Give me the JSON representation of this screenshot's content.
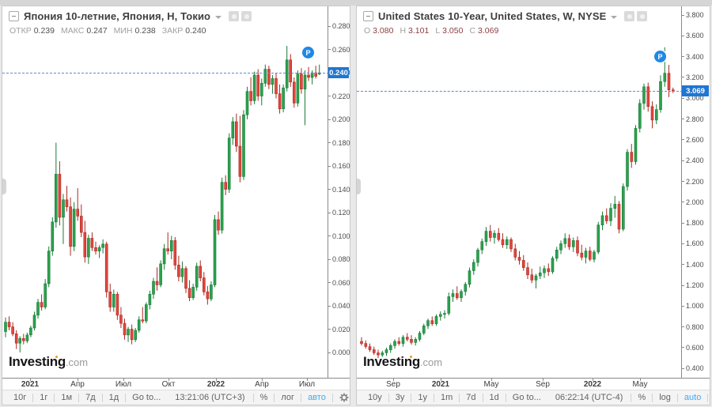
{
  "branding": {
    "logo_bold": "Investing",
    "logo_suffix": ".com",
    "logo_dot_color": "#f7941d"
  },
  "colors": {
    "candle_up_fill": "#2ca24e",
    "candle_up_stroke": "#1a7a38",
    "candle_down_fill": "#e2463d",
    "candle_down_stroke": "#ab2a22",
    "price_badge_bg": "#1f76d2",
    "last_price_line": "#5a8bd6",
    "marker_bg": "#1e88e5",
    "auto_label": "#3fa9f5"
  },
  "chart_data": [
    {
      "type": "candlestick",
      "symbol_title": "Япония 10-летние, Япония, Н, Токио",
      "ohlc": [
        {
          "label": "ОТКР",
          "value": "0.239"
        },
        {
          "label": "МАКС",
          "value": "0.247"
        },
        {
          "label": "МИН",
          "value": "0.238"
        },
        {
          "label": "ЗАКР",
          "value": "0.240"
        }
      ],
      "last_price_label": "0.240",
      "last_price_value": 0.24,
      "marker": {
        "label": "P",
        "x": 379,
        "y": 51
      },
      "y_axis": {
        "v_top": 0.297,
        "v_bottom": -0.0217,
        "decimals": 3,
        "ticks": [
          0.28,
          0.26,
          0.24,
          0.22,
          0.2,
          0.18,
          0.16,
          0.14,
          0.12,
          0.1,
          0.08,
          0.06,
          0.04,
          0.02,
          0.0
        ]
      },
      "x_ticks": [
        {
          "label": "2021",
          "x": 35,
          "bold": true
        },
        {
          "label": "Апр",
          "x": 95,
          "bold": false
        },
        {
          "label": "Июл",
          "x": 153,
          "bold": false
        },
        {
          "label": "Окт",
          "x": 210,
          "bold": false
        },
        {
          "label": "2022",
          "x": 270,
          "bold": true
        },
        {
          "label": "Апр",
          "x": 328,
          "bold": false
        },
        {
          "label": "Июл",
          "x": 385,
          "bold": false
        }
      ],
      "plot": {
        "x_start": 4,
        "x_step": 4.56,
        "candle_width": 3
      },
      "candles": [
        [
          0.018,
          0.03,
          0.013,
          0.026
        ],
        [
          0.026,
          0.031,
          0.019,
          0.022
        ],
        [
          0.022,
          0.026,
          0.014,
          0.016
        ],
        [
          0.016,
          0.019,
          0.003,
          0.008
        ],
        [
          0.008,
          0.014,
          0.0,
          0.012
        ],
        [
          0.012,
          0.016,
          0.007,
          0.01
        ],
        [
          0.01,
          0.017,
          0.008,
          0.015
        ],
        [
          0.015,
          0.023,
          0.013,
          0.021
        ],
        [
          0.021,
          0.035,
          0.019,
          0.032
        ],
        [
          0.032,
          0.046,
          0.029,
          0.043
        ],
        [
          0.043,
          0.05,
          0.036,
          0.039
        ],
        [
          0.039,
          0.063,
          0.037,
          0.059
        ],
        [
          0.059,
          0.091,
          0.056,
          0.087
        ],
        [
          0.087,
          0.116,
          0.083,
          0.112
        ],
        [
          0.112,
          0.18,
          0.107,
          0.153
        ],
        [
          0.153,
          0.164,
          0.109,
          0.116
        ],
        [
          0.116,
          0.136,
          0.093,
          0.131
        ],
        [
          0.131,
          0.143,
          0.121,
          0.125
        ],
        [
          0.125,
          0.133,
          0.083,
          0.091
        ],
        [
          0.091,
          0.129,
          0.087,
          0.123
        ],
        [
          0.123,
          0.141,
          0.113,
          0.117
        ],
        [
          0.117,
          0.127,
          0.099,
          0.103
        ],
        [
          0.103,
          0.113,
          0.077,
          0.082
        ],
        [
          0.082,
          0.101,
          0.076,
          0.098
        ],
        [
          0.098,
          0.103,
          0.087,
          0.09
        ],
        [
          0.09,
          0.095,
          0.084,
          0.087
        ],
        [
          0.087,
          0.092,
          0.081,
          0.09
        ],
        [
          0.09,
          0.097,
          0.085,
          0.093
        ],
        [
          0.093,
          0.095,
          0.047,
          0.052
        ],
        [
          0.052,
          0.059,
          0.035,
          0.039
        ],
        [
          0.039,
          0.054,
          0.035,
          0.05
        ],
        [
          0.05,
          0.052,
          0.028,
          0.032
        ],
        [
          0.032,
          0.039,
          0.021,
          0.025
        ],
        [
          0.025,
          0.029,
          0.011,
          0.015
        ],
        [
          0.015,
          0.022,
          0.009,
          0.02
        ],
        [
          0.02,
          0.024,
          0.007,
          0.011
        ],
        [
          0.011,
          0.021,
          0.009,
          0.019
        ],
        [
          0.019,
          0.031,
          0.017,
          0.028
        ],
        [
          0.028,
          0.039,
          0.025,
          0.027
        ],
        [
          0.027,
          0.043,
          0.025,
          0.041
        ],
        [
          0.041,
          0.053,
          0.037,
          0.05
        ],
        [
          0.05,
          0.064,
          0.046,
          0.061
        ],
        [
          0.061,
          0.073,
          0.053,
          0.058
        ],
        [
          0.058,
          0.079,
          0.056,
          0.076
        ],
        [
          0.076,
          0.093,
          0.071,
          0.089
        ],
        [
          0.089,
          0.103,
          0.084,
          0.087
        ],
        [
          0.087,
          0.1,
          0.08,
          0.096
        ],
        [
          0.096,
          0.099,
          0.071,
          0.075
        ],
        [
          0.075,
          0.083,
          0.061,
          0.065
        ],
        [
          0.065,
          0.078,
          0.06,
          0.072
        ],
        [
          0.072,
          0.074,
          0.051,
          0.055
        ],
        [
          0.055,
          0.062,
          0.044,
          0.047
        ],
        [
          0.047,
          0.059,
          0.045,
          0.056
        ],
        [
          0.056,
          0.077,
          0.053,
          0.074
        ],
        [
          0.074,
          0.079,
          0.061,
          0.064
        ],
        [
          0.064,
          0.069,
          0.049,
          0.052
        ],
        [
          0.052,
          0.057,
          0.041,
          0.046
        ],
        [
          0.046,
          0.061,
          0.044,
          0.058
        ],
        [
          0.058,
          0.118,
          0.056,
          0.114
        ],
        [
          0.114,
          0.121,
          0.101,
          0.105
        ],
        [
          0.105,
          0.15,
          0.102,
          0.146
        ],
        [
          0.146,
          0.152,
          0.135,
          0.14
        ],
        [
          0.14,
          0.188,
          0.137,
          0.184
        ],
        [
          0.184,
          0.202,
          0.178,
          0.198
        ],
        [
          0.198,
          0.205,
          0.172,
          0.177
        ],
        [
          0.177,
          0.203,
          0.146,
          0.151
        ],
        [
          0.151,
          0.208,
          0.148,
          0.204
        ],
        [
          0.204,
          0.228,
          0.2,
          0.224
        ],
        [
          0.224,
          0.236,
          0.212,
          0.216
        ],
        [
          0.216,
          0.241,
          0.213,
          0.238
        ],
        [
          0.238,
          0.243,
          0.216,
          0.22
        ],
        [
          0.22,
          0.235,
          0.212,
          0.231
        ],
        [
          0.231,
          0.247,
          0.228,
          0.243
        ],
        [
          0.243,
          0.246,
          0.226,
          0.23
        ],
        [
          0.23,
          0.238,
          0.222,
          0.235
        ],
        [
          0.235,
          0.24,
          0.218,
          0.222
        ],
        [
          0.222,
          0.23,
          0.205,
          0.209
        ],
        [
          0.209,
          0.23,
          0.206,
          0.227
        ],
        [
          0.227,
          0.263,
          0.224,
          0.251
        ],
        [
          0.251,
          0.256,
          0.228,
          0.232
        ],
        [
          0.232,
          0.236,
          0.21,
          0.214
        ],
        [
          0.214,
          0.242,
          0.211,
          0.239
        ],
        [
          0.239,
          0.244,
          0.222,
          0.226
        ],
        [
          0.226,
          0.242,
          0.195,
          0.238
        ],
        [
          0.238,
          0.245,
          0.233,
          0.236
        ],
        [
          0.236,
          0.242,
          0.23,
          0.24
        ],
        [
          0.24,
          0.246,
          0.235,
          0.237
        ],
        [
          0.239,
          0.247,
          0.238,
          0.24
        ]
      ],
      "toolbar": {
        "ranges": [
          "10г",
          "1г",
          "1м",
          "7д",
          "1д"
        ],
        "goto": "Go to...",
        "clock": "13:21:06 (UTC+3)",
        "modes": [
          "%",
          "лог"
        ],
        "auto": "авто"
      }
    },
    {
      "type": "candlestick",
      "symbol_title": "United States 10-Year, United States, W, NYSE",
      "ohlc": [
        {
          "label": "O",
          "value": "3.080"
        },
        {
          "label": "H",
          "value": "3.101"
        },
        {
          "label": "L",
          "value": "3.050"
        },
        {
          "label": "C",
          "value": "3.069"
        }
      ],
      "last_price_label": "3.069",
      "last_price_value": 3.069,
      "marker": {
        "label": "P",
        "x": 376,
        "y": 56
      },
      "y_axis": {
        "v_top": 3.8837,
        "v_bottom": 0.3103,
        "decimals": 3,
        "ticks": [
          3.8,
          3.6,
          3.4,
          3.2,
          3.0,
          2.8,
          2.6,
          2.4,
          2.2,
          2.0,
          1.8,
          1.6,
          1.4,
          1.2,
          1.0,
          0.8,
          0.6,
          0.4
        ]
      },
      "x_ticks": [
        {
          "label": "Sep",
          "x": 46,
          "bold": false
        },
        {
          "label": "2021",
          "x": 106,
          "bold": true
        },
        {
          "label": "May",
          "x": 170,
          "bold": false
        },
        {
          "label": "Sep",
          "x": 235,
          "bold": false
        },
        {
          "label": "2022",
          "x": 298,
          "bold": true
        },
        {
          "label": "May",
          "x": 358,
          "bold": false
        }
      ],
      "plot": {
        "x_start": 6,
        "x_step": 5.25,
        "candle_width": 3
      },
      "candles": [
        [
          0.66,
          0.7,
          0.62,
          0.64
        ],
        [
          0.64,
          0.67,
          0.59,
          0.61
        ],
        [
          0.61,
          0.64,
          0.56,
          0.58
        ],
        [
          0.58,
          0.61,
          0.53,
          0.55
        ],
        [
          0.55,
          0.58,
          0.5,
          0.53
        ],
        [
          0.53,
          0.57,
          0.51,
          0.55
        ],
        [
          0.55,
          0.6,
          0.52,
          0.58
        ],
        [
          0.58,
          0.64,
          0.55,
          0.62
        ],
        [
          0.62,
          0.68,
          0.59,
          0.66
        ],
        [
          0.66,
          0.7,
          0.62,
          0.64
        ],
        [
          0.64,
          0.72,
          0.61,
          0.7
        ],
        [
          0.7,
          0.74,
          0.66,
          0.68
        ],
        [
          0.68,
          0.72,
          0.63,
          0.65
        ],
        [
          0.65,
          0.7,
          0.62,
          0.68
        ],
        [
          0.68,
          0.76,
          0.66,
          0.74
        ],
        [
          0.74,
          0.83,
          0.72,
          0.81
        ],
        [
          0.81,
          0.88,
          0.78,
          0.86
        ],
        [
          0.86,
          0.9,
          0.81,
          0.83
        ],
        [
          0.83,
          0.92,
          0.81,
          0.9
        ],
        [
          0.9,
          0.95,
          0.86,
          0.92
        ],
        [
          0.92,
          0.96,
          0.88,
          0.93
        ],
        [
          0.93,
          1.13,
          0.91,
          1.09
        ],
        [
          1.09,
          1.16,
          1.04,
          1.12
        ],
        [
          1.12,
          1.19,
          1.06,
          1.08
        ],
        [
          1.08,
          1.16,
          1.04,
          1.14
        ],
        [
          1.14,
          1.23,
          1.1,
          1.21
        ],
        [
          1.21,
          1.37,
          1.18,
          1.34
        ],
        [
          1.34,
          1.45,
          1.3,
          1.42
        ],
        [
          1.42,
          1.56,
          1.38,
          1.54
        ],
        [
          1.54,
          1.65,
          1.5,
          1.62
        ],
        [
          1.62,
          1.76,
          1.58,
          1.72
        ],
        [
          1.72,
          1.78,
          1.62,
          1.66
        ],
        [
          1.66,
          1.73,
          1.6,
          1.7
        ],
        [
          1.7,
          1.75,
          1.62,
          1.64
        ],
        [
          1.64,
          1.7,
          1.56,
          1.59
        ],
        [
          1.59,
          1.67,
          1.55,
          1.64
        ],
        [
          1.64,
          1.66,
          1.52,
          1.55
        ],
        [
          1.55,
          1.6,
          1.44,
          1.47
        ],
        [
          1.47,
          1.53,
          1.4,
          1.44
        ],
        [
          1.44,
          1.49,
          1.34,
          1.37
        ],
        [
          1.37,
          1.42,
          1.26,
          1.3
        ],
        [
          1.3,
          1.36,
          1.22,
          1.25
        ],
        [
          1.25,
          1.31,
          1.17,
          1.29
        ],
        [
          1.29,
          1.38,
          1.26,
          1.32
        ],
        [
          1.32,
          1.39,
          1.27,
          1.36
        ],
        [
          1.36,
          1.41,
          1.29,
          1.33
        ],
        [
          1.33,
          1.48,
          1.31,
          1.46
        ],
        [
          1.46,
          1.57,
          1.43,
          1.54
        ],
        [
          1.54,
          1.63,
          1.5,
          1.6
        ],
        [
          1.6,
          1.7,
          1.56,
          1.65
        ],
        [
          1.65,
          1.69,
          1.54,
          1.57
        ],
        [
          1.57,
          1.66,
          1.52,
          1.63
        ],
        [
          1.63,
          1.67,
          1.48,
          1.51
        ],
        [
          1.51,
          1.59,
          1.44,
          1.47
        ],
        [
          1.47,
          1.56,
          1.41,
          1.53
        ],
        [
          1.53,
          1.57,
          1.43,
          1.45
        ],
        [
          1.45,
          1.54,
          1.42,
          1.52
        ],
        [
          1.52,
          1.81,
          1.5,
          1.78
        ],
        [
          1.78,
          1.91,
          1.73,
          1.87
        ],
        [
          1.87,
          1.94,
          1.79,
          1.82
        ],
        [
          1.82,
          1.99,
          1.77,
          1.94
        ],
        [
          1.94,
          2.06,
          1.85,
          1.98
        ],
        [
          1.98,
          2.01,
          1.7,
          1.74
        ],
        [
          1.74,
          2.18,
          1.72,
          2.15
        ],
        [
          2.15,
          2.51,
          2.11,
          2.48
        ],
        [
          2.48,
          2.56,
          2.33,
          2.39
        ],
        [
          2.39,
          2.74,
          2.36,
          2.71
        ],
        [
          2.71,
          2.99,
          2.67,
          2.95
        ],
        [
          2.95,
          3.14,
          2.89,
          3.11
        ],
        [
          3.11,
          3.15,
          2.87,
          2.92
        ],
        [
          2.92,
          2.97,
          2.71,
          2.79
        ],
        [
          2.79,
          2.94,
          2.75,
          2.89
        ],
        [
          2.89,
          3.22,
          2.86,
          3.16
        ],
        [
          3.16,
          3.49,
          3.11,
          3.24
        ],
        [
          3.24,
          3.32,
          3.01,
          3.08
        ],
        [
          3.08,
          3.101,
          3.05,
          3.069
        ]
      ],
      "toolbar": {
        "ranges": [
          "10y",
          "3y",
          "1y",
          "1m",
          "7d",
          "1d"
        ],
        "goto": "Go to...",
        "clock": "06:22:14 (UTC-4)",
        "modes": [
          "%",
          "log"
        ],
        "auto": "auto"
      }
    }
  ]
}
